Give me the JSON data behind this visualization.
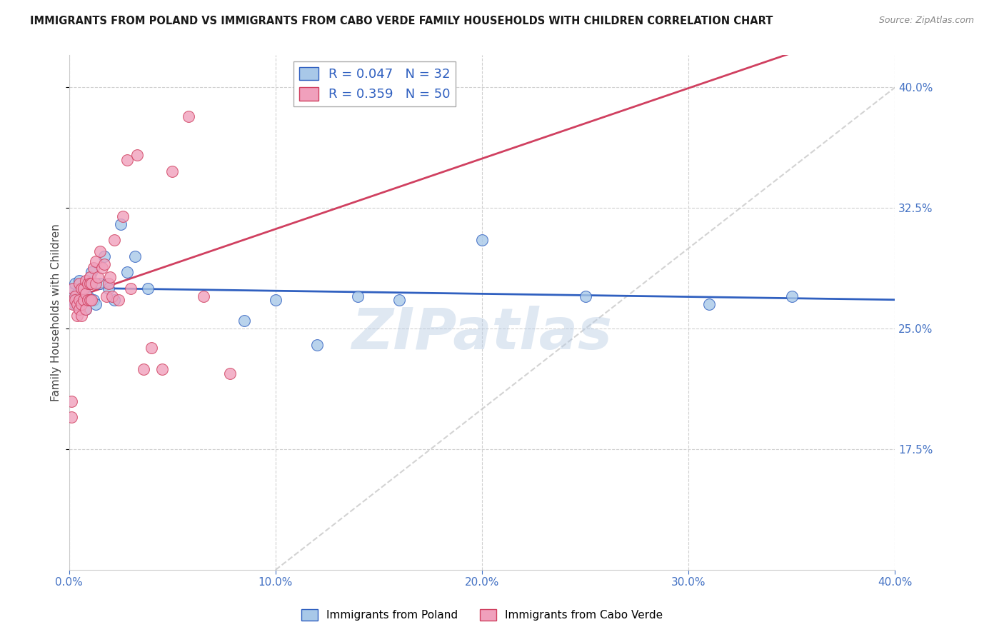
{
  "title": "IMMIGRANTS FROM POLAND VS IMMIGRANTS FROM CABO VERDE FAMILY HOUSEHOLDS WITH CHILDREN CORRELATION CHART",
  "source": "Source: ZipAtlas.com",
  "ylabel": "Family Households with Children",
  "legend_poland": "Immigrants from Poland",
  "legend_caboverde": "Immigrants from Cabo Verde",
  "R_poland": 0.047,
  "N_poland": 32,
  "R_caboverde": 0.359,
  "N_caboverde": 50,
  "xlim": [
    0.0,
    0.4
  ],
  "ylim": [
    0.1,
    0.42
  ],
  "yticks_right": [
    0.175,
    0.25,
    0.325,
    0.4
  ],
  "ytick_labels_right": [
    "17.5%",
    "25.0%",
    "32.5%",
    "40.0%"
  ],
  "xticks": [
    0.0,
    0.1,
    0.2,
    0.3,
    0.4
  ],
  "xtick_labels": [
    "0.0%",
    "10.0%",
    "20.0%",
    "30.0%",
    "40.0%"
  ],
  "color_poland": "#a8c8e8",
  "color_caboverde": "#f0a0bc",
  "color_trendline_poland": "#3060c0",
  "color_trendline_caboverde": "#d04060",
  "color_diagonal": "#c8c8c8",
  "color_axis_right": "#4472c4",
  "color_axis_bottom": "#4472c4",
  "watermark": "ZIPatlas",
  "poland_x": [
    0.001,
    0.002,
    0.002,
    0.003,
    0.003,
    0.004,
    0.005,
    0.006,
    0.007,
    0.008,
    0.009,
    0.01,
    0.011,
    0.012,
    0.013,
    0.015,
    0.017,
    0.019,
    0.022,
    0.025,
    0.028,
    0.032,
    0.038,
    0.085,
    0.1,
    0.12,
    0.14,
    0.16,
    0.2,
    0.25,
    0.31,
    0.35
  ],
  "poland_y": [
    0.27,
    0.268,
    0.275,
    0.265,
    0.278,
    0.272,
    0.28,
    0.268,
    0.275,
    0.262,
    0.27,
    0.278,
    0.285,
    0.268,
    0.265,
    0.278,
    0.295,
    0.275,
    0.268,
    0.315,
    0.285,
    0.295,
    0.275,
    0.255,
    0.268,
    0.24,
    0.27,
    0.268,
    0.305,
    0.27,
    0.265,
    0.27
  ],
  "caboverde_x": [
    0.001,
    0.001,
    0.002,
    0.002,
    0.003,
    0.003,
    0.004,
    0.004,
    0.005,
    0.005,
    0.005,
    0.006,
    0.006,
    0.006,
    0.007,
    0.007,
    0.008,
    0.008,
    0.008,
    0.009,
    0.009,
    0.01,
    0.01,
    0.01,
    0.011,
    0.011,
    0.012,
    0.013,
    0.013,
    0.014,
    0.015,
    0.016,
    0.017,
    0.018,
    0.019,
    0.02,
    0.021,
    0.022,
    0.024,
    0.026,
    0.028,
    0.03,
    0.033,
    0.036,
    0.04,
    0.045,
    0.05,
    0.058,
    0.065,
    0.078
  ],
  "caboverde_y": [
    0.205,
    0.195,
    0.265,
    0.275,
    0.27,
    0.268,
    0.265,
    0.258,
    0.262,
    0.268,
    0.278,
    0.265,
    0.258,
    0.275,
    0.268,
    0.275,
    0.272,
    0.28,
    0.262,
    0.268,
    0.278,
    0.282,
    0.268,
    0.278,
    0.278,
    0.268,
    0.288,
    0.292,
    0.278,
    0.282,
    0.298,
    0.288,
    0.29,
    0.27,
    0.278,
    0.282,
    0.27,
    0.305,
    0.268,
    0.32,
    0.355,
    0.275,
    0.358,
    0.225,
    0.238,
    0.225,
    0.348,
    0.382,
    0.27,
    0.222
  ]
}
